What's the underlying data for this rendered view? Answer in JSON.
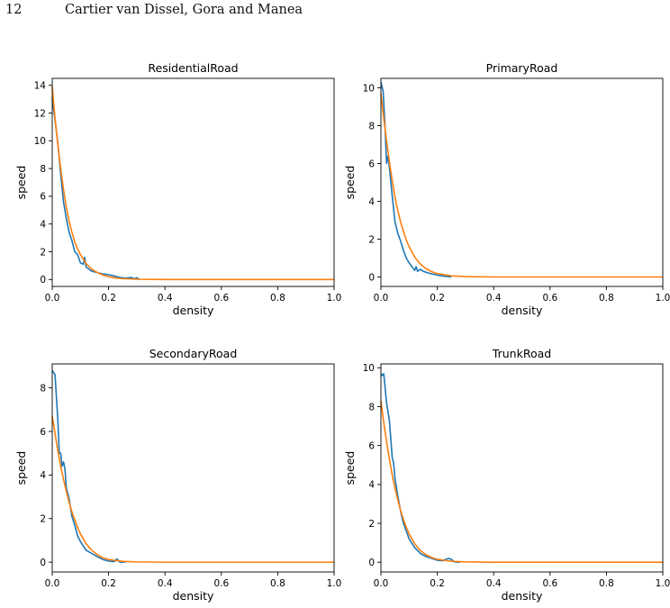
{
  "header": {
    "page_number": "12",
    "running_head": "Cartier van Dissel, Gora and Manea"
  },
  "colors": {
    "series_a": "#1f77b4",
    "series_b": "#ff7f0e"
  },
  "chart_data": [
    {
      "type": "line",
      "title": "ResidentialRoad",
      "xlabel": "density",
      "ylabel": "speed",
      "xlim": [
        0,
        1
      ],
      "ylim": [
        -0.5,
        14.5
      ],
      "xticks": [
        0.0,
        0.2,
        0.4,
        0.6,
        0.8,
        1.0
      ],
      "xtick_labels": [
        "0.0",
        "0.2",
        "0.4",
        "0.6",
        "0.8",
        "1.0"
      ],
      "yticks": [
        0,
        2,
        4,
        6,
        8,
        10,
        12,
        14
      ],
      "ytick_labels": [
        "0",
        "2",
        "4",
        "6",
        "8",
        "10",
        "12",
        "14"
      ],
      "grid": false,
      "series": [
        {
          "x": [
            0.0,
            0.01,
            0.02,
            0.03,
            0.04,
            0.05,
            0.06,
            0.07,
            0.08,
            0.09,
            0.1,
            0.11,
            0.115,
            0.12,
            0.13,
            0.14,
            0.15,
            0.16,
            0.17,
            0.18,
            0.2,
            0.22,
            0.24,
            0.26,
            0.28,
            0.29,
            0.3,
            0.31
          ],
          "y": [
            13.0,
            11.5,
            9.8,
            7.6,
            5.6,
            4.4,
            3.4,
            2.8,
            2.0,
            1.8,
            1.2,
            1.1,
            1.6,
            0.9,
            0.75,
            0.6,
            0.55,
            0.5,
            0.45,
            0.4,
            0.35,
            0.25,
            0.15,
            0.1,
            0.15,
            0.05,
            0.12,
            0.0
          ]
        },
        {
          "x": [
            0.0,
            0.01,
            0.02,
            0.03,
            0.04,
            0.05,
            0.06,
            0.07,
            0.08,
            0.09,
            0.1,
            0.12,
            0.14,
            0.16,
            0.18,
            0.2,
            0.22,
            0.25,
            0.3,
            0.35,
            0.4,
            0.6,
            0.8,
            1.0
          ],
          "y": [
            13.9,
            11.6,
            9.7,
            8.0,
            6.5,
            5.2,
            4.2,
            3.4,
            2.7,
            2.2,
            1.8,
            1.15,
            0.75,
            0.5,
            0.32,
            0.2,
            0.12,
            0.06,
            0.02,
            0.01,
            0.0,
            0.0,
            0.0,
            0.0
          ]
        }
      ]
    },
    {
      "type": "line",
      "title": "PrimaryRoad",
      "xlabel": "density",
      "ylabel": "speed",
      "xlim": [
        0,
        1
      ],
      "ylim": [
        -0.5,
        10.5
      ],
      "xticks": [
        0.0,
        0.2,
        0.4,
        0.6,
        0.8,
        1.0
      ],
      "xtick_labels": [
        "0.0",
        "0.2",
        "0.4",
        "0.6",
        "0.8",
        "1.0"
      ],
      "yticks": [
        0,
        2,
        4,
        6,
        8,
        10
      ],
      "ytick_labels": [
        "0",
        "2",
        "4",
        "6",
        "8",
        "10"
      ],
      "grid": false,
      "series": [
        {
          "x": [
            0.0,
            0.008,
            0.015,
            0.02,
            0.025,
            0.03,
            0.04,
            0.05,
            0.06,
            0.07,
            0.08,
            0.09,
            0.1,
            0.11,
            0.12,
            0.125,
            0.13,
            0.14,
            0.15,
            0.17,
            0.2,
            0.22,
            0.25
          ],
          "y": [
            10.3,
            9.8,
            7.8,
            6.0,
            6.4,
            5.8,
            4.3,
            2.9,
            2.3,
            1.9,
            1.4,
            1.0,
            0.75,
            0.55,
            0.35,
            0.55,
            0.3,
            0.4,
            0.3,
            0.2,
            0.1,
            0.05,
            0.0
          ]
        },
        {
          "x": [
            0.0,
            0.01,
            0.02,
            0.03,
            0.04,
            0.05,
            0.06,
            0.07,
            0.08,
            0.09,
            0.1,
            0.12,
            0.14,
            0.16,
            0.18,
            0.2,
            0.25,
            0.3,
            0.4,
            0.6,
            0.8,
            1.0
          ],
          "y": [
            9.7,
            8.4,
            7.2,
            6.1,
            5.1,
            4.2,
            3.5,
            2.9,
            2.4,
            1.95,
            1.6,
            1.05,
            0.68,
            0.44,
            0.28,
            0.18,
            0.06,
            0.02,
            0.0,
            0.0,
            0.0,
            0.0
          ]
        }
      ]
    },
    {
      "type": "line",
      "title": "SecondaryRoad",
      "xlabel": "density",
      "ylabel": "speed",
      "xlim": [
        0,
        1
      ],
      "ylim": [
        -0.45,
        9.1
      ],
      "xticks": [
        0.0,
        0.2,
        0.4,
        0.6,
        0.8,
        1.0
      ],
      "xtick_labels": [
        "0.0",
        "0.2",
        "0.4",
        "0.6",
        "0.8",
        "1.0"
      ],
      "yticks": [
        0,
        2,
        4,
        6,
        8
      ],
      "ytick_labels": [
        "0",
        "2",
        "4",
        "6",
        "8"
      ],
      "grid": false,
      "series": [
        {
          "x": [
            0.0,
            0.01,
            0.02,
            0.025,
            0.03,
            0.035,
            0.04,
            0.045,
            0.05,
            0.06,
            0.07,
            0.08,
            0.09,
            0.1,
            0.12,
            0.14,
            0.16,
            0.18,
            0.2,
            0.22,
            0.23,
            0.24,
            0.26
          ],
          "y": [
            8.8,
            8.6,
            6.5,
            5.0,
            5.0,
            4.4,
            4.6,
            4.3,
            3.4,
            2.9,
            2.1,
            1.7,
            1.2,
            0.95,
            0.55,
            0.4,
            0.25,
            0.12,
            0.05,
            0.03,
            0.15,
            0.0,
            0.0
          ]
        },
        {
          "x": [
            0.0,
            0.01,
            0.02,
            0.03,
            0.04,
            0.05,
            0.06,
            0.07,
            0.08,
            0.09,
            0.1,
            0.12,
            0.14,
            0.16,
            0.18,
            0.2,
            0.25,
            0.3,
            0.4,
            0.6,
            0.8,
            1.0
          ],
          "y": [
            6.7,
            5.9,
            5.1,
            4.4,
            3.8,
            3.25,
            2.75,
            2.3,
            1.95,
            1.6,
            1.3,
            0.85,
            0.55,
            0.34,
            0.2,
            0.12,
            0.04,
            0.01,
            0.0,
            0.0,
            0.0,
            0.0
          ]
        }
      ]
    },
    {
      "type": "line",
      "title": "TrunkRoad",
      "xlabel": "density",
      "ylabel": "speed",
      "xlim": [
        0,
        1
      ],
      "ylim": [
        -0.5,
        10.2
      ],
      "xticks": [
        0.0,
        0.2,
        0.4,
        0.6,
        0.8,
        1.0
      ],
      "xtick_labels": [
        "0.0",
        "0.2",
        "0.4",
        "0.6",
        "0.8",
        "1.0"
      ],
      "yticks": [
        0,
        2,
        4,
        6,
        8,
        10
      ],
      "ytick_labels": [
        "0",
        "2",
        "4",
        "6",
        "8",
        "10"
      ],
      "grid": false,
      "series": [
        {
          "x": [
            0.0,
            0.005,
            0.01,
            0.02,
            0.03,
            0.04,
            0.045,
            0.05,
            0.06,
            0.07,
            0.08,
            0.09,
            0.1,
            0.12,
            0.14,
            0.16,
            0.18,
            0.2,
            0.22,
            0.23,
            0.24,
            0.25,
            0.26,
            0.28
          ],
          "y": [
            9.7,
            9.6,
            9.7,
            8.2,
            7.3,
            5.4,
            5.1,
            4.3,
            3.4,
            2.6,
            2.0,
            1.6,
            1.2,
            0.75,
            0.45,
            0.3,
            0.2,
            0.1,
            0.08,
            0.15,
            0.2,
            0.15,
            0.02,
            0.0
          ]
        },
        {
          "x": [
            0.0,
            0.01,
            0.02,
            0.03,
            0.04,
            0.05,
            0.06,
            0.07,
            0.08,
            0.09,
            0.1,
            0.12,
            0.14,
            0.16,
            0.18,
            0.2,
            0.25,
            0.3,
            0.4,
            0.6,
            0.8,
            1.0
          ],
          "y": [
            8.3,
            7.2,
            6.2,
            5.3,
            4.5,
            3.8,
            3.2,
            2.65,
            2.2,
            1.8,
            1.45,
            0.95,
            0.6,
            0.38,
            0.24,
            0.15,
            0.05,
            0.02,
            0.0,
            0.0,
            0.0,
            0.0
          ]
        }
      ]
    }
  ]
}
